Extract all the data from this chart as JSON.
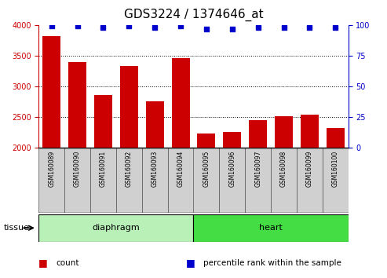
{
  "title": "GDS3224 / 1374646_at",
  "samples": [
    "GSM160089",
    "GSM160090",
    "GSM160091",
    "GSM160092",
    "GSM160093",
    "GSM160094",
    "GSM160095",
    "GSM160096",
    "GSM160097",
    "GSM160098",
    "GSM160099",
    "GSM160100"
  ],
  "counts": [
    3820,
    3400,
    2860,
    3330,
    2750,
    3460,
    2230,
    2250,
    2450,
    2510,
    2540,
    2320
  ],
  "percentiles": [
    99,
    99,
    98,
    99,
    98,
    99,
    97,
    97,
    98,
    98,
    98,
    98
  ],
  "bar_color": "#cc0000",
  "dot_color": "#0000cc",
  "ylim_left": [
    2000,
    4000
  ],
  "ylim_right": [
    0,
    100
  ],
  "yticks_left": [
    2000,
    2500,
    3000,
    3500,
    4000
  ],
  "yticks_right": [
    0,
    25,
    50,
    75,
    100
  ],
  "tissue_groups": [
    {
      "label": "diaphragm",
      "start": 0,
      "end": 6,
      "color": "#b8f0b8"
    },
    {
      "label": "heart",
      "start": 6,
      "end": 12,
      "color": "#44dd44"
    }
  ],
  "legend_items": [
    {
      "label": "count",
      "color": "#cc0000"
    },
    {
      "label": "percentile rank within the sample",
      "color": "#0000cc"
    }
  ],
  "tissue_label": "tissue",
  "background_color": "#ffffff",
  "xtick_bg_color": "#d0d0d0",
  "grid_color": "#000000",
  "title_fontsize": 11,
  "tick_fontsize": 7,
  "sample_fontsize": 5.5
}
